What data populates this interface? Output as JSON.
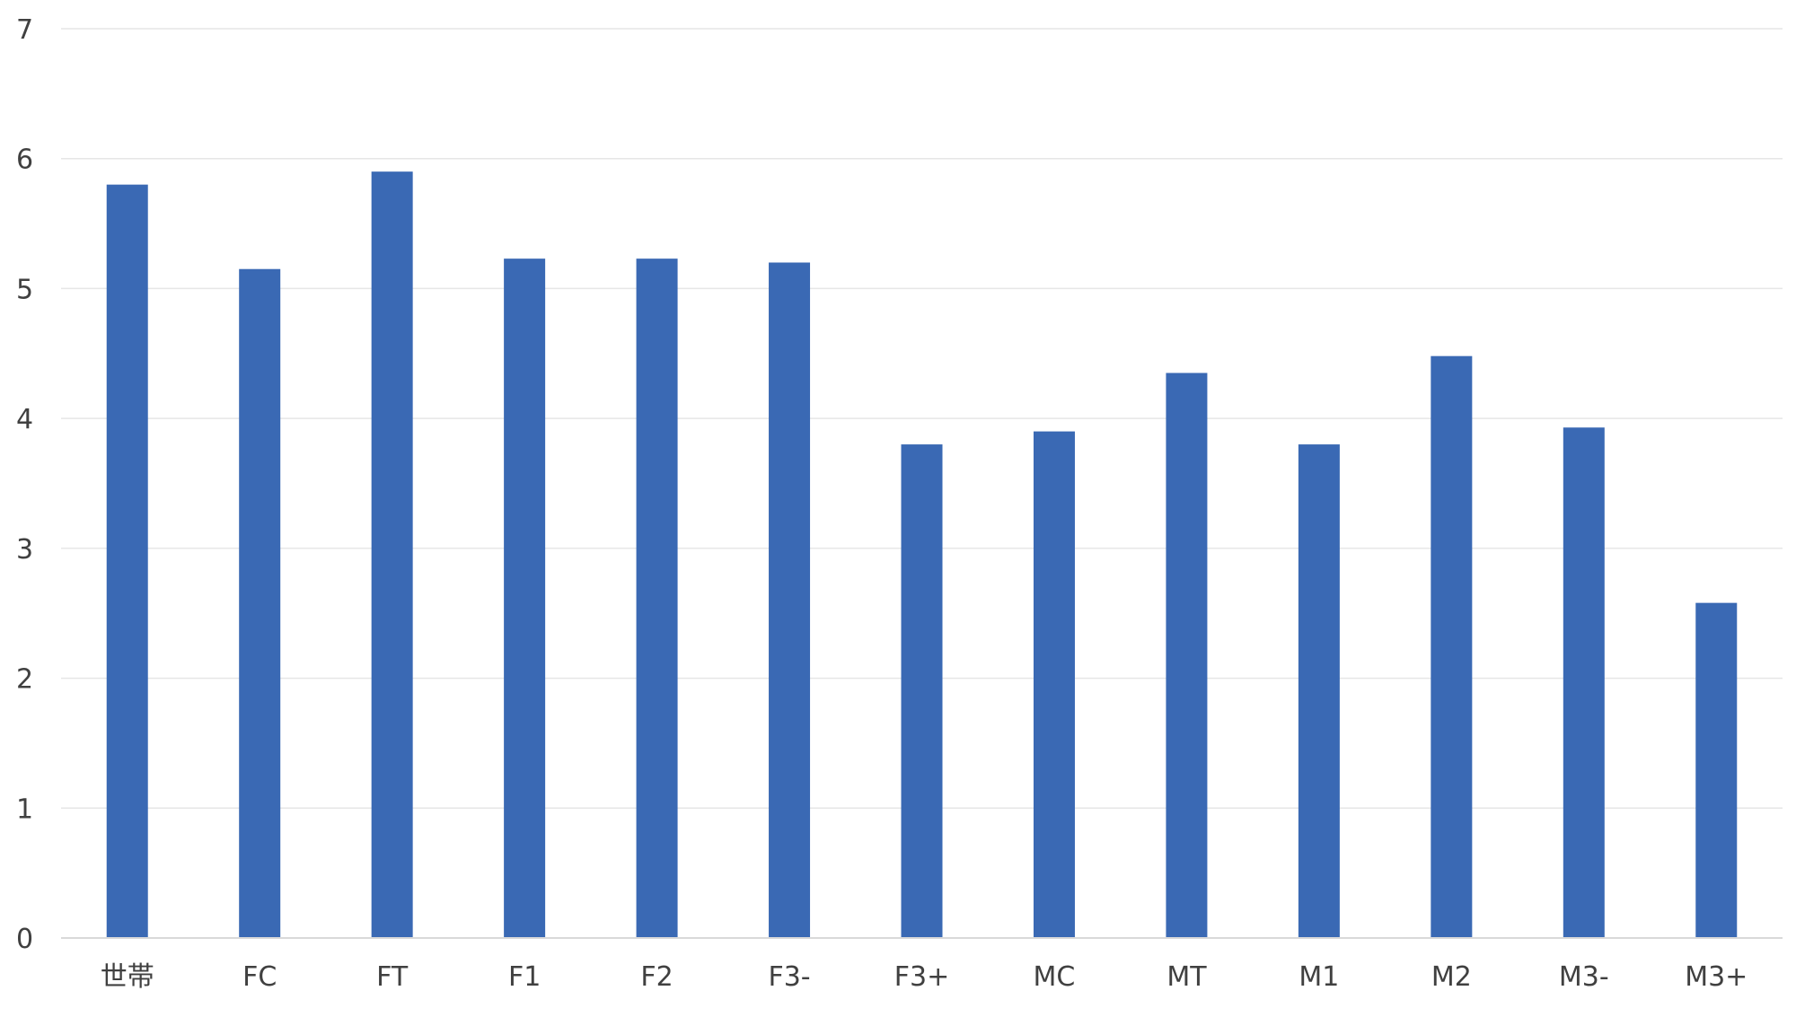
{
  "chart_data": {
    "type": "bar",
    "categories": [
      "世帯",
      "FC",
      "FT",
      "F1",
      "F2",
      "F3-",
      "F3+",
      "MC",
      "MT",
      "M1",
      "M2",
      "M3-",
      "M3+"
    ],
    "values": [
      5.8,
      5.15,
      5.9,
      5.23,
      5.23,
      5.2,
      3.8,
      3.9,
      4.35,
      3.8,
      4.48,
      3.93,
      2.58
    ],
    "ylim": [
      0,
      7
    ],
    "yticks": [
      "0",
      "1",
      "2",
      "3",
      "4",
      "5",
      "6",
      "7"
    ],
    "title": "",
    "xlabel": "",
    "ylabel": "",
    "grid": true,
    "bar_color": "#3a69b4",
    "grid_color": "#e6e6e6",
    "axis_color": "#d9d9d9"
  }
}
